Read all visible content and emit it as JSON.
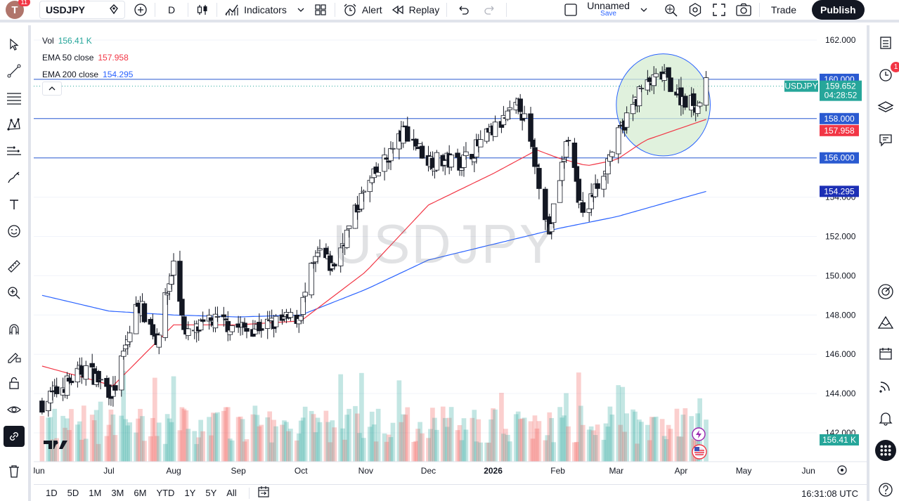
{
  "topbar": {
    "avatar_letter": "T",
    "avatar_badge": "11",
    "symbol": "USDJPY",
    "interval": "D",
    "indicators_label": "Indicators",
    "alert_label": "Alert",
    "replay_label": "Replay",
    "layout_name": "Unnamed",
    "save_label": "Save",
    "trade_label": "Trade",
    "publish_label": "Publish"
  },
  "legend": {
    "vol_label": "Vol",
    "vol_value": "156.41 K",
    "ema50_label": "EMA 50 close",
    "ema50_value": "157.958",
    "ema200_label": "EMA 200 close",
    "ema200_value": "154.295"
  },
  "watermark": "USDJPY",
  "price_tags": {
    "level_160": "160.000",
    "last_symbol": "USDJPY",
    "last_price": "159.652",
    "countdown": "04:28:52",
    "level_158": "158.000",
    "ema50": "157.958",
    "level_156": "156.000",
    "ema200": "154.295",
    "volume": "156.41 K"
  },
  "bottombar": {
    "ranges": [
      "1D",
      "5D",
      "1M",
      "3M",
      "6M",
      "YTD",
      "1Y",
      "5Y",
      "All"
    ],
    "clock": "16:31:08 UTC"
  },
  "right_badge": "1",
  "colors": {
    "up": "#26a69a",
    "down": "#ef5350",
    "ema50": "#f23645",
    "ema200": "#2962ff",
    "level_line": "#2a5ad1",
    "circle_fill": "#d6ecd2",
    "circle_stroke": "#2962ff"
  },
  "chart_data": {
    "type": "candlestick",
    "symbol": "USDJPY",
    "interval": "1D",
    "y_axis_ticks": [
      142,
      144,
      146,
      148,
      150,
      152,
      154,
      156,
      158,
      160,
      162
    ],
    "y_axis_labels": [
      "142.000",
      "144.000",
      "146.000",
      "148.000",
      "150.000",
      "152.000",
      "154.000",
      "156.000",
      "158.000",
      "160.000",
      "162.000"
    ],
    "ylim": [
      141.0,
      163.0
    ],
    "x_axis_labels": [
      "Jun",
      "Jul",
      "Aug",
      "Sep",
      "Oct",
      "Nov",
      "Dec",
      "2026",
      "Feb",
      "Mar",
      "Apr",
      "May",
      "Jun"
    ],
    "horizontal_levels": [
      160.0,
      158.0,
      156.0
    ],
    "last_price": 159.652,
    "ema50_last": 157.958,
    "ema200_last": 154.295,
    "volume_last": "156.41 K",
    "close_waypoints": [
      {
        "date": "2025-05-30",
        "close": 143.5
      },
      {
        "date": "2025-06-20",
        "close": 145.3
      },
      {
        "date": "2025-07-03",
        "close": 144.0
      },
      {
        "date": "2025-07-15",
        "close": 148.7
      },
      {
        "date": "2025-07-24",
        "close": 146.8
      },
      {
        "date": "2025-08-01",
        "close": 150.6
      },
      {
        "date": "2025-08-07",
        "close": 146.9
      },
      {
        "date": "2025-08-20",
        "close": 147.7
      },
      {
        "date": "2025-09-05",
        "close": 147.3
      },
      {
        "date": "2025-09-15",
        "close": 147.5
      },
      {
        "date": "2025-09-30",
        "close": 147.9
      },
      {
        "date": "2025-10-06",
        "close": 150.2
      },
      {
        "date": "2025-10-10",
        "close": 151.2
      },
      {
        "date": "2025-10-16",
        "close": 150.4
      },
      {
        "date": "2025-10-31",
        "close": 154.2
      },
      {
        "date": "2025-11-20",
        "close": 157.4
      },
      {
        "date": "2025-12-01",
        "close": 155.9
      },
      {
        "date": "2025-12-17",
        "close": 155.8
      },
      {
        "date": "2026-01-14",
        "close": 158.7
      },
      {
        "date": "2026-01-22",
        "close": 155.4
      },
      {
        "date": "2026-01-28",
        "close": 152.2
      },
      {
        "date": "2026-02-06",
        "close": 157.2
      },
      {
        "date": "2026-02-13",
        "close": 152.9
      },
      {
        "date": "2026-02-27",
        "close": 156.4
      },
      {
        "date": "2026-03-05",
        "close": 157.8
      },
      {
        "date": "2026-03-13",
        "close": 159.5
      },
      {
        "date": "2026-03-24",
        "close": 160.2
      },
      {
        "date": "2026-04-01",
        "close": 159.1
      },
      {
        "date": "2026-04-09",
        "close": 158.7
      },
      {
        "date": "2026-04-13",
        "close": 159.652
      }
    ],
    "ema50_waypoints": [
      {
        "date": "2025-05-30",
        "value": 145.4
      },
      {
        "date": "2025-07-03",
        "value": 144.4
      },
      {
        "date": "2025-08-01",
        "value": 147.5
      },
      {
        "date": "2025-09-01",
        "value": 147.5
      },
      {
        "date": "2025-10-01",
        "value": 147.7
      },
      {
        "date": "2025-11-01",
        "value": 150.2
      },
      {
        "date": "2025-12-01",
        "value": 153.6
      },
      {
        "date": "2026-01-01",
        "value": 155.2
      },
      {
        "date": "2026-01-22",
        "value": 156.4
      },
      {
        "date": "2026-02-01",
        "value": 156.0
      },
      {
        "date": "2026-02-15",
        "value": 155.6
      },
      {
        "date": "2026-03-01",
        "value": 155.9
      },
      {
        "date": "2026-03-15",
        "value": 156.9
      },
      {
        "date": "2026-04-13",
        "value": 157.958
      }
    ],
    "ema200_waypoints": [
      {
        "date": "2025-05-30",
        "value": 149.0
      },
      {
        "date": "2025-07-01",
        "value": 148.2
      },
      {
        "date": "2025-08-01",
        "value": 148.0
      },
      {
        "date": "2025-09-01",
        "value": 147.9
      },
      {
        "date": "2025-10-01",
        "value": 148.0
      },
      {
        "date": "2025-11-01",
        "value": 149.3
      },
      {
        "date": "2025-12-01",
        "value": 150.8
      },
      {
        "date": "2026-01-01",
        "value": 151.6
      },
      {
        "date": "2026-02-01",
        "value": 152.4
      },
      {
        "date": "2026-03-01",
        "value": 153.0
      },
      {
        "date": "2026-04-13",
        "value": 154.295
      }
    ],
    "annotations": [
      {
        "type": "ellipse",
        "from_date": "2026-03-01",
        "to_date": "2026-04-15",
        "price_top": 161.3,
        "price_bottom": 156.1
      }
    ],
    "x_range": {
      "start": "2025-05-26",
      "end": "2026-06-05"
    }
  }
}
